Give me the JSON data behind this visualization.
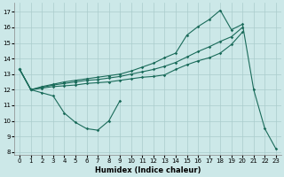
{
  "xlabel": "Humidex (Indice chaleur)",
  "bg_color": "#cce8e8",
  "grid_color": "#aacccc",
  "line_color": "#1a6b5a",
  "xlim": [
    -0.5,
    23.5
  ],
  "ylim": [
    7.8,
    17.6
  ],
  "xticks": [
    0,
    1,
    2,
    3,
    4,
    5,
    6,
    7,
    8,
    9,
    10,
    11,
    12,
    13,
    14,
    15,
    16,
    17,
    18,
    19,
    20,
    21,
    22,
    23
  ],
  "yticks": [
    8,
    9,
    10,
    11,
    12,
    13,
    14,
    15,
    16,
    17
  ],
  "curve_dip_x": [
    0,
    1,
    2,
    3,
    4,
    5,
    6,
    7,
    8,
    9
  ],
  "curve_dip_y": [
    13.3,
    12.0,
    11.8,
    11.6,
    10.5,
    9.9,
    9.5,
    9.4,
    10.0,
    11.3
  ],
  "line_bot_x": [
    0,
    1,
    2,
    3,
    4,
    5,
    6,
    7,
    8,
    9,
    10,
    11,
    12,
    13,
    14,
    15,
    16,
    17,
    18,
    19,
    20
  ],
  "line_bot_y": [
    13.3,
    12.0,
    12.1,
    12.2,
    12.25,
    12.3,
    12.4,
    12.45,
    12.5,
    12.6,
    12.7,
    12.8,
    12.85,
    12.95,
    13.3,
    13.6,
    13.85,
    14.05,
    14.35,
    14.9,
    15.7
  ],
  "line_mid_x": [
    0,
    1,
    2,
    3,
    4,
    5,
    6,
    7,
    8,
    9,
    10,
    11,
    12,
    13,
    14,
    15,
    16,
    17,
    18,
    19,
    20
  ],
  "line_mid_y": [
    13.3,
    12.0,
    12.15,
    12.3,
    12.4,
    12.5,
    12.6,
    12.65,
    12.75,
    12.85,
    13.0,
    13.15,
    13.3,
    13.5,
    13.75,
    14.1,
    14.45,
    14.75,
    15.1,
    15.4,
    16.0
  ],
  "line_top_x": [
    0,
    1,
    2,
    3,
    4,
    5,
    6,
    7,
    8,
    9,
    10,
    11,
    12,
    13,
    14,
    15,
    16,
    17,
    18,
    19,
    20,
    21,
    22,
    23
  ],
  "line_top_y": [
    13.3,
    12.0,
    12.2,
    12.35,
    12.5,
    12.6,
    12.7,
    12.8,
    12.9,
    13.0,
    13.2,
    13.45,
    13.7,
    14.05,
    14.35,
    15.5,
    16.05,
    16.5,
    17.1,
    15.85,
    16.2,
    12.0,
    9.5,
    8.2
  ]
}
